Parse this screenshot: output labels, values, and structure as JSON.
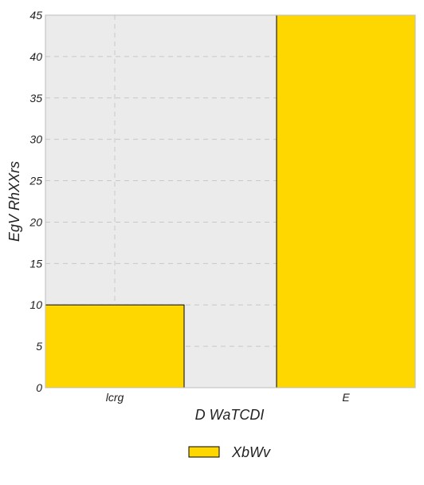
{
  "chart_data": {
    "type": "bar",
    "categories": [
      "lcrg",
      "E"
    ],
    "series": [
      {
        "name": "XbWv",
        "values": [
          10,
          45
        ]
      }
    ],
    "title": "",
    "xlabel": "D WaTCDI",
    "ylabel": "EgV RhXXrs",
    "ylim": [
      0,
      45
    ],
    "yticks": [
      0,
      5,
      10,
      15,
      20,
      25,
      30,
      35,
      40,
      45
    ],
    "grid": true,
    "legend_position": "bottom-center"
  },
  "colors": {
    "plot_background": "#ebebeb",
    "bar_fill": "#ffd700",
    "bar_stroke": "#000000",
    "grid": "#c8c8c8",
    "frame": "#bdbdbd"
  }
}
